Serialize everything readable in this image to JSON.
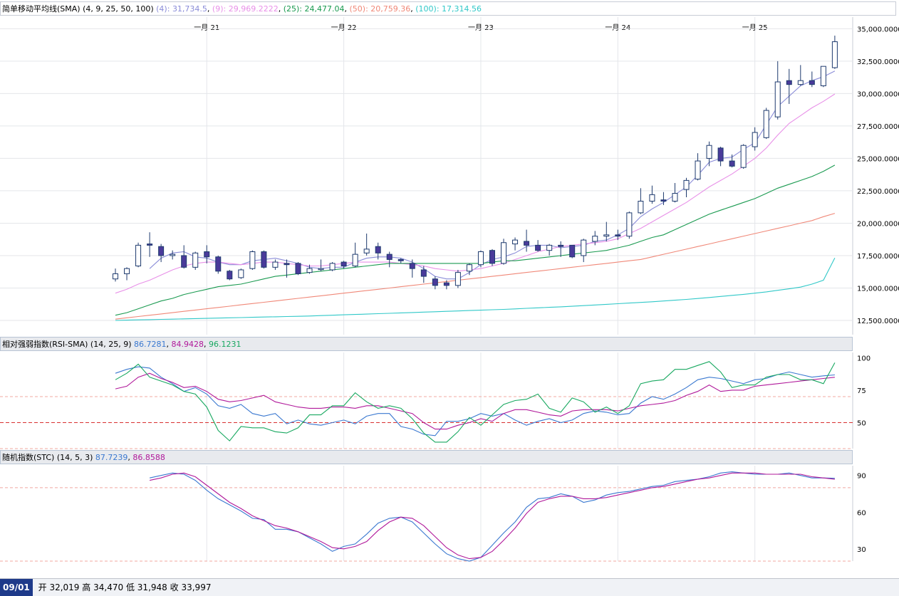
{
  "main_header": {
    "title": "简单移动平均线(SMA)",
    "params": "(4, 9, 25, 50, 100)",
    "items": [
      {
        "label": "(4): ",
        "value": "31,734.5",
        "color": "#8a8cd8"
      },
      {
        "label": "(9): ",
        "value": "29,969.2222",
        "color": "#e890e8"
      },
      {
        "label": "(25): ",
        "value": "24,477.04",
        "color": "#1a9a50"
      },
      {
        "label": "(50): ",
        "value": "20,759.36",
        "color": "#f08878"
      },
      {
        "label": "(100): ",
        "value": "17,314.56",
        "color": "#30c8c8"
      }
    ]
  },
  "rsi_header": {
    "title": "相对强弱指数(RSI-SMA)",
    "params": "(14, 25, 9)",
    "items": [
      {
        "value": "86.7281",
        "color": "#3a78d0"
      },
      {
        "value": "84.9428",
        "color": "#b0189a"
      },
      {
        "value": "96.1231",
        "color": "#18a860"
      }
    ]
  },
  "stc_header": {
    "title": "随机指数(STC)",
    "params": "(14, 5, 3)",
    "items": [
      {
        "value": "87.7239",
        "color": "#3a78d0"
      },
      {
        "value": "86.8588",
        "color": "#b0189a"
      }
    ]
  },
  "status": {
    "date": "09/01",
    "open_label": "开",
    "open": "32,019",
    "high_label": "高",
    "high": "34,470",
    "low_label": "低",
    "low": "31,948",
    "close_label": "收",
    "close": "33,997"
  },
  "chart_data": {
    "type": "candlestick",
    "x_tick_labels": [
      "一月 21",
      "一月 22",
      "一月 23",
      "一月 24",
      "一月 25"
    ],
    "x_tick_index": [
      8,
      20,
      32,
      44,
      56
    ],
    "price_ticks": [
      "35,000.0000",
      "32,500.0000",
      "30,000.0000",
      "27,500.0000",
      "25,000.0000",
      "22,500.0000",
      "20,000.0000",
      "17,500.0000",
      "15,000.0000",
      "12,500.0000"
    ],
    "price_tick_values": [
      35000,
      32500,
      30000,
      27500,
      25000,
      22500,
      20000,
      17500,
      15000,
      12500
    ],
    "price_range": [
      11400,
      35900
    ],
    "candles": [
      [
        15700,
        16100,
        16500,
        15500
      ],
      [
        16100,
        16500,
        16600,
        15600
      ],
      [
        16700,
        18300,
        18500,
        16600
      ],
      [
        18400,
        18300,
        19300,
        17400
      ],
      [
        18200,
        17500,
        18400,
        17000
      ],
      [
        17500,
        17600,
        17900,
        17200
      ],
      [
        17500,
        16600,
        18300,
        16500
      ],
      [
        16600,
        17700,
        17800,
        16400
      ],
      [
        17800,
        17400,
        18300,
        16900
      ],
      [
        17400,
        16300,
        17500,
        16100
      ],
      [
        16300,
        15700,
        16400,
        15600
      ],
      [
        15800,
        16400,
        16500,
        15700
      ],
      [
        16500,
        17800,
        17900,
        16400
      ],
      [
        17800,
        16600,
        17900,
        16500
      ],
      [
        16600,
        17000,
        17200,
        16400
      ],
      [
        16900,
        16800,
        17200,
        15800
      ],
      [
        16900,
        16100,
        17000,
        16000
      ],
      [
        16200,
        16500,
        16800,
        16100
      ],
      [
        16500,
        16500,
        17200,
        16300
      ],
      [
        16400,
        16900,
        17000,
        16300
      ],
      [
        17000,
        16700,
        17100,
        16500
      ],
      [
        16700,
        17600,
        18500,
        16600
      ],
      [
        17700,
        18000,
        19200,
        17500
      ],
      [
        18200,
        17700,
        18500,
        17200
      ],
      [
        17600,
        17200,
        17800,
        16600
      ],
      [
        17200,
        17100,
        17300,
        16900
      ],
      [
        16900,
        16500,
        17200,
        15800
      ],
      [
        16400,
        15900,
        16700,
        15400
      ],
      [
        15700,
        15200,
        15900,
        14900
      ],
      [
        15400,
        15200,
        15600,
        14900
      ],
      [
        15200,
        16200,
        16400,
        15000
      ],
      [
        16300,
        16800,
        16900,
        16000
      ],
      [
        16800,
        17800,
        17900,
        16600
      ],
      [
        17900,
        16900,
        18000,
        16700
      ],
      [
        16900,
        18500,
        18800,
        16800
      ],
      [
        18400,
        18700,
        18900,
        17900
      ],
      [
        18600,
        18300,
        19500,
        17800
      ],
      [
        18300,
        17900,
        18700,
        17800
      ],
      [
        17900,
        18300,
        18400,
        17500
      ],
      [
        18300,
        18200,
        18600,
        17400
      ],
      [
        18300,
        17400,
        18300,
        17300
      ],
      [
        17500,
        18700,
        18800,
        17000
      ],
      [
        18600,
        19000,
        19400,
        18300
      ],
      [
        19000,
        19100,
        20100,
        18600
      ],
      [
        19100,
        19000,
        19500,
        18700
      ],
      [
        19000,
        20800,
        20900,
        18800
      ],
      [
        20800,
        21700,
        22700,
        20700
      ],
      [
        21700,
        22200,
        22900,
        21500
      ],
      [
        21800,
        21700,
        22400,
        21400
      ],
      [
        21700,
        22300,
        23100,
        21600
      ],
      [
        22600,
        23300,
        23500,
        22000
      ],
      [
        23400,
        24800,
        25400,
        23300
      ],
      [
        25000,
        26000,
        26300,
        24400
      ],
      [
        25800,
        24800,
        25900,
        24400
      ],
      [
        24800,
        24400,
        25300,
        24300
      ],
      [
        24300,
        26000,
        26100,
        24200
      ],
      [
        25900,
        27000,
        27400,
        25600
      ],
      [
        26600,
        28700,
        28900,
        26500
      ],
      [
        28200,
        30900,
        32500,
        28000
      ],
      [
        31000,
        30700,
        31900,
        29200
      ],
      [
        30700,
        31000,
        32200,
        30600
      ],
      [
        31000,
        30700,
        31700,
        30500
      ],
      [
        30600,
        32100,
        32100,
        30500
      ],
      [
        32000,
        34000,
        34470,
        31900
      ]
    ],
    "series": [
      {
        "values": [
          null,
          null,
          null,
          16500,
          17300,
          17700,
          17800,
          17400,
          17300,
          17000,
          16800,
          16800,
          17100,
          17200,
          17300,
          17100,
          16900,
          16600,
          16500,
          16600,
          16600,
          17000,
          17300,
          17400,
          17400,
          17300,
          17000,
          16500,
          15900,
          15700,
          15700,
          16200,
          16800,
          17200,
          17400,
          17700,
          18200,
          18300,
          18300,
          18100,
          18200,
          18300,
          18600,
          18700,
          19100,
          19600,
          20500,
          21100,
          21600,
          22200,
          22800,
          23700,
          24700,
          25000,
          25100,
          25700,
          26200,
          27600,
          29000,
          29800,
          30600,
          31000,
          31300,
          31734.5
        ]
      },
      {
        "values": [
          14600,
          14900,
          15300,
          15600,
          16000,
          16400,
          16700,
          16900,
          17000,
          17000,
          16900,
          16800,
          16900,
          17000,
          17000,
          16900,
          16800,
          16700,
          16700,
          16800,
          16900,
          17000,
          17000,
          17000,
          17000,
          16900,
          16800,
          16700,
          16500,
          16400,
          16300,
          16400,
          16500,
          16700,
          16900,
          17200,
          17500,
          17800,
          18000,
          18200,
          18300,
          18400,
          18500,
          18600,
          18800,
          19200,
          19600,
          20100,
          20600,
          21100,
          21600,
          22200,
          22800,
          23300,
          23800,
          24400,
          25000,
          25800,
          26800,
          27700,
          28300,
          28900,
          29400,
          29969.2222
        ]
      },
      {
        "values": [
          12900,
          13100,
          13400,
          13700,
          14000,
          14200,
          14500,
          14700,
          14900,
          15100,
          15200,
          15300,
          15500,
          15700,
          15900,
          16000,
          16100,
          16200,
          16300,
          16400,
          16500,
          16600,
          16700,
          16800,
          16900,
          16900,
          16900,
          16900,
          16900,
          16900,
          16900,
          16900,
          16900,
          17000,
          17100,
          17100,
          17200,
          17300,
          17400,
          17500,
          17600,
          17700,
          17800,
          17900,
          18100,
          18300,
          18600,
          18900,
          19100,
          19500,
          19900,
          20300,
          20700,
          21000,
          21300,
          21600,
          21900,
          22300,
          22700,
          23000,
          23300,
          23600,
          24000,
          24477.04
        ]
      },
      {
        "values": [
          12600,
          12700,
          12800,
          12900,
          13000,
          13100,
          13200,
          13300,
          13400,
          13500,
          13600,
          13700,
          13800,
          13900,
          14000,
          14100,
          14200,
          14300,
          14400,
          14500,
          14600,
          14700,
          14800,
          14900,
          15000,
          15100,
          15200,
          15300,
          15400,
          15500,
          15600,
          15700,
          15800,
          15900,
          16000,
          16100,
          16200,
          16300,
          16400,
          16500,
          16600,
          16700,
          16800,
          16900,
          17000,
          17100,
          17200,
          17400,
          17600,
          17800,
          18000,
          18200,
          18400,
          18600,
          18800,
          19000,
          19200,
          19400,
          19600,
          19800,
          20000,
          20200,
          20500,
          20759.36
        ]
      },
      {
        "values": [
          12500,
          12520,
          12540,
          12560,
          12580,
          12600,
          12620,
          12640,
          12660,
          12680,
          12700,
          12720,
          12740,
          12760,
          12780,
          12800,
          12820,
          12840,
          12870,
          12900,
          12930,
          12960,
          12990,
          13020,
          13050,
          13080,
          13110,
          13140,
          13170,
          13200,
          13230,
          13260,
          13290,
          13320,
          13350,
          13390,
          13430,
          13470,
          13510,
          13550,
          13590,
          13640,
          13690,
          13740,
          13790,
          13840,
          13890,
          13940,
          14000,
          14060,
          14120,
          14190,
          14270,
          14350,
          14430,
          14510,
          14600,
          14700,
          14820,
          14940,
          15070,
          15300,
          15600,
          17314.56
        ]
      }
    ],
    "rsi": {
      "y_ticks": [
        100,
        75,
        50
      ],
      "y_range": [
        30,
        104
      ],
      "levels": [
        70,
        50,
        30
      ],
      "lines": [
        {
          "values": [
            88,
            91,
            93,
            92,
            85,
            80,
            74,
            77,
            72,
            63,
            61,
            64,
            57,
            55,
            57,
            49,
            52,
            49,
            48,
            50,
            52,
            49,
            55,
            57,
            57,
            47,
            45,
            41,
            40,
            51,
            51,
            53,
            57,
            55,
            57,
            52,
            48,
            51,
            53,
            50,
            52,
            57,
            59,
            58,
            56,
            57,
            65,
            70,
            68,
            72,
            77,
            83,
            85,
            84,
            82,
            80,
            83,
            84,
            87,
            89,
            87,
            85,
            86,
            86.7281
          ]
        },
        {
          "values": [
            76,
            78,
            85,
            88,
            84,
            81,
            77,
            78,
            74,
            68,
            66,
            67,
            69,
            71,
            66,
            64,
            62,
            61,
            61,
            62,
            62,
            61,
            63,
            63,
            61,
            59,
            57,
            50,
            45,
            45,
            48,
            50,
            53,
            51,
            57,
            60,
            60,
            58,
            56,
            55,
            59,
            60,
            60,
            60,
            59,
            61,
            63,
            64,
            65,
            67,
            71,
            74,
            79,
            74,
            75,
            75,
            78,
            79,
            80,
            81,
            82,
            83,
            84,
            84.9428
          ]
        },
        {
          "values": [
            83,
            88,
            95,
            85,
            82,
            79,
            74,
            72,
            62,
            44,
            36,
            47,
            46,
            46,
            43,
            42,
            46,
            56,
            56,
            63,
            63,
            73,
            66,
            61,
            63,
            61,
            53,
            42,
            35,
            35,
            43,
            54,
            48,
            56,
            64,
            67,
            68,
            72,
            61,
            58,
            69,
            66,
            58,
            62,
            57,
            63,
            80,
            82,
            83,
            91,
            91,
            94,
            97,
            89,
            77,
            79,
            79,
            85,
            87,
            87,
            83,
            83,
            80,
            96.1231
          ]
        }
      ]
    },
    "stc": {
      "y_ticks": [
        90,
        60,
        30
      ],
      "y_range": [
        20,
        98
      ],
      "levels": [
        80,
        20
      ],
      "lines": [
        {
          "values": [
            88,
            90,
            92,
            91,
            86,
            78,
            71,
            66,
            61,
            55,
            54,
            46,
            46,
            44,
            39,
            34,
            28,
            32,
            34,
            42,
            51,
            55,
            56,
            52,
            43,
            34,
            26,
            22,
            20,
            23,
            33,
            43,
            52,
            64,
            71,
            72,
            75,
            73,
            68,
            70,
            74,
            76,
            77,
            79,
            81,
            82,
            85,
            86,
            87,
            89,
            92,
            93,
            92,
            91,
            91,
            91,
            92,
            90,
            88,
            88,
            87.7239
          ]
        },
        {
          "values": [
            86,
            88,
            91,
            92,
            89,
            82,
            75,
            68,
            63,
            57,
            53,
            49,
            47,
            44,
            40,
            36,
            31,
            30,
            32,
            36,
            45,
            52,
            56,
            55,
            49,
            40,
            31,
            25,
            22,
            23,
            28,
            37,
            47,
            59,
            68,
            71,
            73,
            73,
            71,
            71,
            72,
            74,
            76,
            78,
            80,
            81,
            83,
            85,
            87,
            88,
            90,
            92,
            92,
            92,
            91,
            91,
            91,
            91,
            89,
            88,
            86.8588
          ]
        }
      ]
    }
  }
}
